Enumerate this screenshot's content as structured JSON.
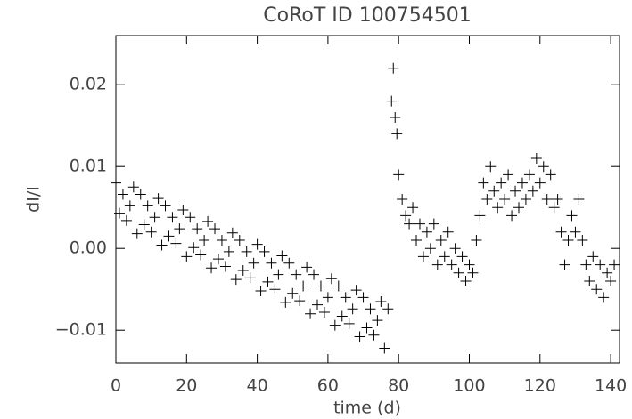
{
  "chart_data": {
    "type": "scatter",
    "title": "CoRoT ID 100754501",
    "x_label": "time (d)",
    "y_label": "dI/I",
    "color": "#000000",
    "x": [
      0,
      1,
      2,
      3,
      4,
      5,
      6,
      7,
      8,
      9,
      10,
      11,
      12,
      13,
      14,
      15,
      16,
      17,
      18,
      19,
      20,
      21,
      22,
      23,
      24,
      25,
      26,
      27,
      28,
      29,
      30,
      31,
      32,
      33,
      34,
      35,
      36,
      37,
      38,
      39,
      40,
      41,
      42,
      43,
      44,
      45,
      46,
      47,
      48,
      49,
      50,
      51,
      52,
      53,
      54,
      55,
      56,
      57,
      58,
      59,
      60,
      61,
      62,
      63,
      64,
      65,
      66,
      67,
      68,
      69,
      70,
      71,
      72,
      73,
      74,
      75,
      76,
      77,
      78,
      78.5,
      79,
      79.5,
      80,
      81,
      82,
      83,
      84,
      85,
      86,
      87,
      88,
      89,
      90,
      91,
      92,
      93,
      94,
      95,
      96,
      97,
      98,
      99,
      100,
      101,
      102,
      103,
      104,
      105,
      106,
      107,
      108,
      109,
      110,
      111,
      112,
      113,
      114,
      115,
      116,
      117,
      118,
      119,
      120,
      121,
      122,
      123,
      124,
      125,
      126,
      127,
      128,
      129,
      130,
      131,
      132,
      133,
      134,
      135,
      136,
      137,
      138,
      139,
      140,
      141
    ],
    "y": [
      0.008,
      0.0043,
      0.0066,
      0.0034,
      0.0052,
      0.0075,
      0.0018,
      0.0066,
      0.0029,
      0.0052,
      0.002,
      0.0038,
      0.0061,
      0.0004,
      0.0052,
      0.0015,
      0.0038,
      0.0006,
      0.0024,
      0.0047,
      -0.001,
      0.0038,
      0.0001,
      0.0024,
      -0.0008,
      0.001,
      0.0033,
      -0.0024,
      0.0024,
      -0.0013,
      0.001,
      -0.0022,
      -0.0004,
      0.0019,
      -0.0038,
      0.001,
      -0.0027,
      -0.0004,
      -0.0036,
      -0.0018,
      0.0005,
      -0.0052,
      -0.0004,
      -0.0041,
      -0.0018,
      -0.005,
      -0.0032,
      -0.0009,
      -0.0066,
      -0.0018,
      -0.0055,
      -0.0032,
      -0.0064,
      -0.0046,
      -0.0023,
      -0.008,
      -0.0032,
      -0.0069,
      -0.0046,
      -0.0078,
      -0.006,
      -0.0037,
      -0.0094,
      -0.0046,
      -0.0083,
      -0.006,
      -0.0092,
      -0.0074,
      -0.0051,
      -0.0108,
      -0.006,
      -0.0097,
      -0.0074,
      -0.0106,
      -0.0088,
      -0.0065,
      -0.0122,
      -0.0074,
      0.018,
      0.022,
      0.016,
      0.014,
      0.009,
      0.006,
      0.004,
      0.003,
      0.005,
      0.001,
      0.003,
      -0.001,
      0.002,
      0,
      0.003,
      -0.002,
      0.001,
      -0.001,
      0.002,
      -0.002,
      0,
      -0.003,
      -0.001,
      -0.004,
      -0.002,
      -0.003,
      0.001,
      0.004,
      0.008,
      0.006,
      0.01,
      0.007,
      0.005,
      0.008,
      0.006,
      0.009,
      0.004,
      0.007,
      0.005,
      0.008,
      0.006,
      0.009,
      0.007,
      0.011,
      0.008,
      0.01,
      0.006,
      0.009,
      0.005,
      0.006,
      0.002,
      -0.002,
      0.001,
      0.004,
      0.002,
      0.006,
      0.001,
      -0.002,
      -0.004,
      -0.001,
      -0.005,
      -0.002,
      -0.006,
      -0.003,
      -0.004,
      -0.002
    ],
    "xlim": [
      0,
      142.5
    ],
    "xticks": [
      0,
      20,
      40,
      60,
      80,
      100,
      120,
      140
    ],
    "ylim": [
      -0.014,
      0.026
    ],
    "yticks": [
      {
        "value": -0.01,
        "label": "−0.01"
      },
      {
        "value": 0,
        "label": "0.00"
      },
      {
        "value": 0.01,
        "label": "0.01"
      },
      {
        "value": 0.02,
        "label": "0.02"
      }
    ]
  }
}
